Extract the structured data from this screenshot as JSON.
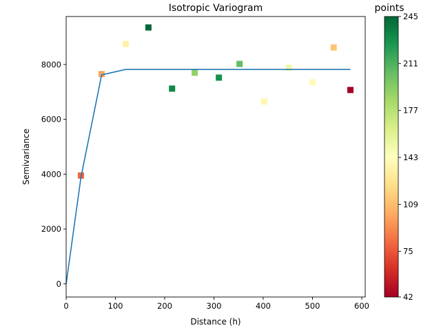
{
  "chart_data": {
    "type": "scatter",
    "title": "Isotropic Variogram",
    "xlabel": "Distance (h)",
    "ylabel": "Semivariance",
    "xlim": [
      0,
      607
    ],
    "ylim": [
      -480,
      9750
    ],
    "xticks": [
      "0",
      "100",
      "200",
      "300",
      "400",
      "500",
      "600"
    ],
    "xtick_values": [
      0,
      100,
      200,
      300,
      400,
      500,
      600
    ],
    "yticks": [
      "0",
      "2000",
      "4000",
      "6000",
      "8000"
    ],
    "ytick_values": [
      0,
      2000,
      4000,
      6000,
      8000
    ],
    "grid": false,
    "legend": "none",
    "colorbar": {
      "label": "points",
      "colormap": "RdYlGn",
      "range": [
        42,
        245
      ],
      "ticks": [
        "42",
        "75",
        "109",
        "143",
        "177",
        "211",
        "245"
      ],
      "tick_values": [
        42,
        75,
        109,
        143,
        177,
        211,
        245
      ],
      "colors": [
        "#a50026",
        "#d73027",
        "#f46d43",
        "#fdae61",
        "#fee08b",
        "#ffffbf",
        "#d9ef8b",
        "#a6d96a",
        "#66bd63",
        "#1a9850",
        "#006837"
      ]
    },
    "points": [
      {
        "x": 30,
        "y": 3950,
        "n": 80
      },
      {
        "x": 72,
        "y": 7650,
        "n": 100
      },
      {
        "x": 121,
        "y": 8750,
        "n": 135
      },
      {
        "x": 167,
        "y": 9350,
        "n": 245
      },
      {
        "x": 215,
        "y": 7120,
        "n": 232
      },
      {
        "x": 261,
        "y": 7700,
        "n": 190
      },
      {
        "x": 310,
        "y": 7520,
        "n": 228
      },
      {
        "x": 352,
        "y": 8020,
        "n": 205
      },
      {
        "x": 402,
        "y": 6650,
        "n": 138
      },
      {
        "x": 452,
        "y": 7880,
        "n": 152
      },
      {
        "x": 500,
        "y": 7350,
        "n": 140
      },
      {
        "x": 543,
        "y": 8620,
        "n": 112
      },
      {
        "x": 577,
        "y": 7070,
        "n": 42
      }
    ],
    "model_line": {
      "color": "#1f77b4",
      "x": [
        0,
        30,
        72,
        121,
        167,
        215,
        261,
        310,
        352,
        402,
        452,
        500,
        543,
        577
      ],
      "y": [
        0,
        3880,
        7620,
        7820,
        7820,
        7820,
        7820,
        7820,
        7820,
        7820,
        7820,
        7820,
        7820,
        7820
      ]
    }
  }
}
